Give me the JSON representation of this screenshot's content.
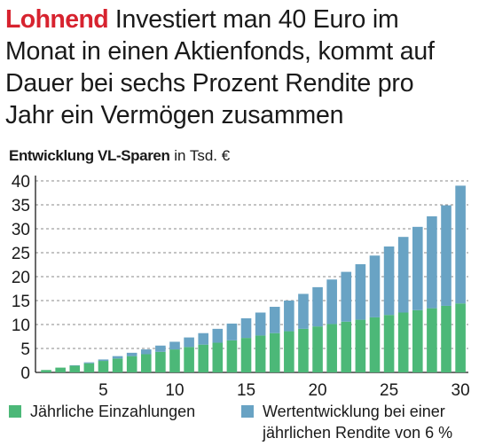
{
  "headline": {
    "keyword": "Lohnend",
    "text": "Investiert man 40 Euro im Monat in einen Aktienfonds, kommt auf Dauer bei sechs Prozent Rendite pro Jahr ein Vermögen zusammen"
  },
  "colors": {
    "keyword": "#d7232f",
    "einzahlungen": "#4cb878",
    "wertentwicklung": "#69a3c4",
    "grid": "#888888"
  },
  "chart_data": {
    "type": "bar",
    "stacked": true,
    "title": "Entwicklung VL-Sparen",
    "unit": "in Tsd. €",
    "x": [
      1,
      2,
      3,
      4,
      5,
      6,
      7,
      8,
      9,
      10,
      11,
      12,
      13,
      14,
      15,
      16,
      17,
      18,
      19,
      20,
      21,
      22,
      23,
      24,
      25,
      26,
      27,
      28,
      29,
      30
    ],
    "xticks": [
      5,
      10,
      15,
      20,
      25,
      30
    ],
    "yticks": [
      0,
      5,
      10,
      15,
      20,
      25,
      30,
      35,
      40
    ],
    "ylim": [
      0,
      40
    ],
    "grid": "horizontal dashed",
    "legend_position": "bottom",
    "series": [
      {
        "name": "Jährliche Einzahlungen",
        "values": [
          0.5,
          1.0,
          1.4,
          1.9,
          2.4,
          2.9,
          3.4,
          3.8,
          4.3,
          4.8,
          5.3,
          5.8,
          6.2,
          6.7,
          7.2,
          7.7,
          8.2,
          8.6,
          9.1,
          9.6,
          10.1,
          10.6,
          11.0,
          11.5,
          12.0,
          12.5,
          13.0,
          13.4,
          13.9,
          14.4
        ]
      },
      {
        "name": "Wertentwicklung bei einer jährlichen Rendite von 6 %",
        "values": [
          0.0,
          0.0,
          0.1,
          0.2,
          0.3,
          0.5,
          0.7,
          1.0,
          1.3,
          1.6,
          2.0,
          2.4,
          2.9,
          3.5,
          4.1,
          4.8,
          5.5,
          6.4,
          7.3,
          8.2,
          9.3,
          10.4,
          11.6,
          12.9,
          14.3,
          15.8,
          17.4,
          19.2,
          21.0,
          24.6
        ]
      }
    ]
  }
}
